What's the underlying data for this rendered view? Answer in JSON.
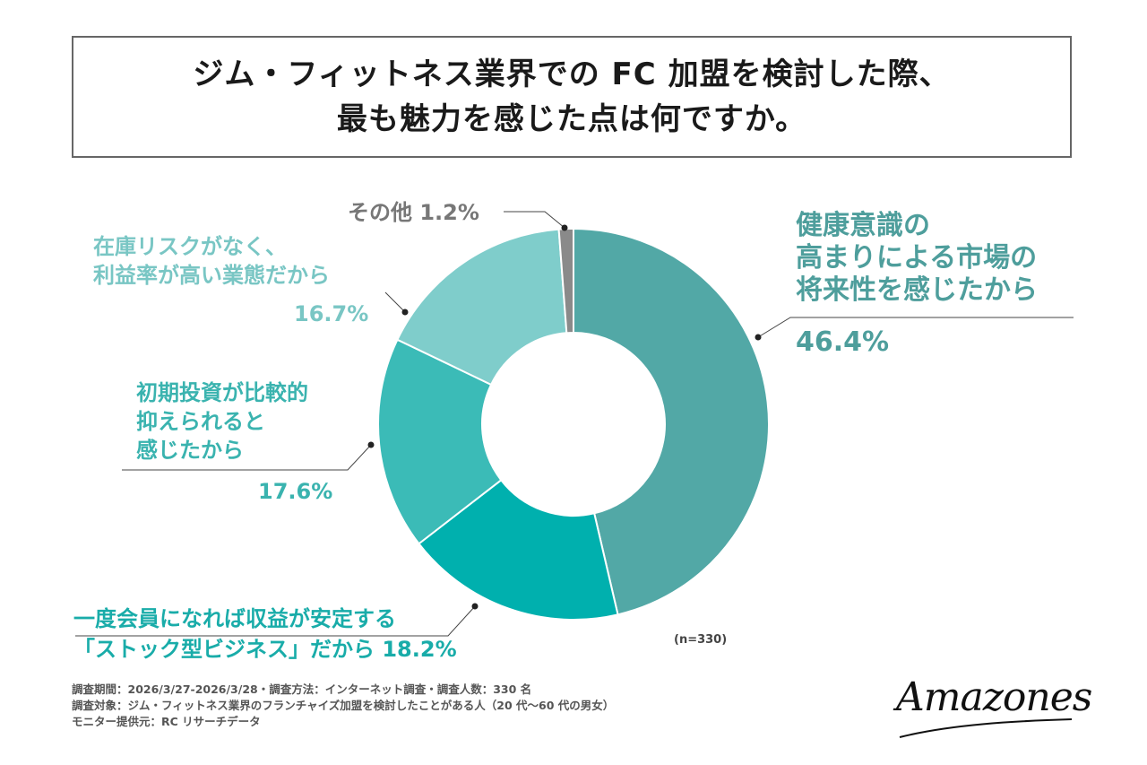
{
  "title": {
    "line1": "ジム・フィットネス業界での FC 加盟を検討した際、",
    "line2": "最も魅力を感じた点は何ですか。"
  },
  "chart_data": {
    "type": "pie",
    "donut": true,
    "sample_note": "(n=330)",
    "slices": [
      {
        "lines": [
          "健康意識の",
          "高まりによる市場の",
          "将来性を感じたから"
        ],
        "pct_text": "46.4%",
        "value": 46.4,
        "color": "#52a8a6",
        "label_color": "#4e9e9c"
      },
      {
        "lines": [
          "一度会員になれば収益が安定する",
          "「ストック型ビジネス」だから 18.2%"
        ],
        "pct_text": "",
        "value": 18.2,
        "color": "#00b0ae",
        "label_color": "#19aca9"
      },
      {
        "lines": [
          "初期投資が比較的",
          "抑えられると",
          "感じたから"
        ],
        "pct_text": "17.6%",
        "value": 17.6,
        "color": "#3bbbb7",
        "label_color": "#3ab3af"
      },
      {
        "lines": [
          "在庫リスクがなく、",
          "利益率が高い業態だから"
        ],
        "pct_text": "16.7%",
        "value": 16.7,
        "color": "#7fcdcb",
        "label_color": "#79c6c4"
      },
      {
        "lines": [
          "その他 1.2%"
        ],
        "pct_text": "",
        "value": 1.2,
        "color": "#8a8a8a",
        "label_color": "#777777"
      }
    ]
  },
  "footer": {
    "line1": "調査期間：2026/3/27-2026/3/28・調査方法：インターネット調査・調査人数：330 名",
    "line2": "調査対象：ジム・フィットネス業界のフランチャイズ加盟を検討したことがある人（20 代〜60 代の男女）",
    "line3": "モニター提供元：RC リサーチデータ"
  },
  "logo": "Amazones"
}
